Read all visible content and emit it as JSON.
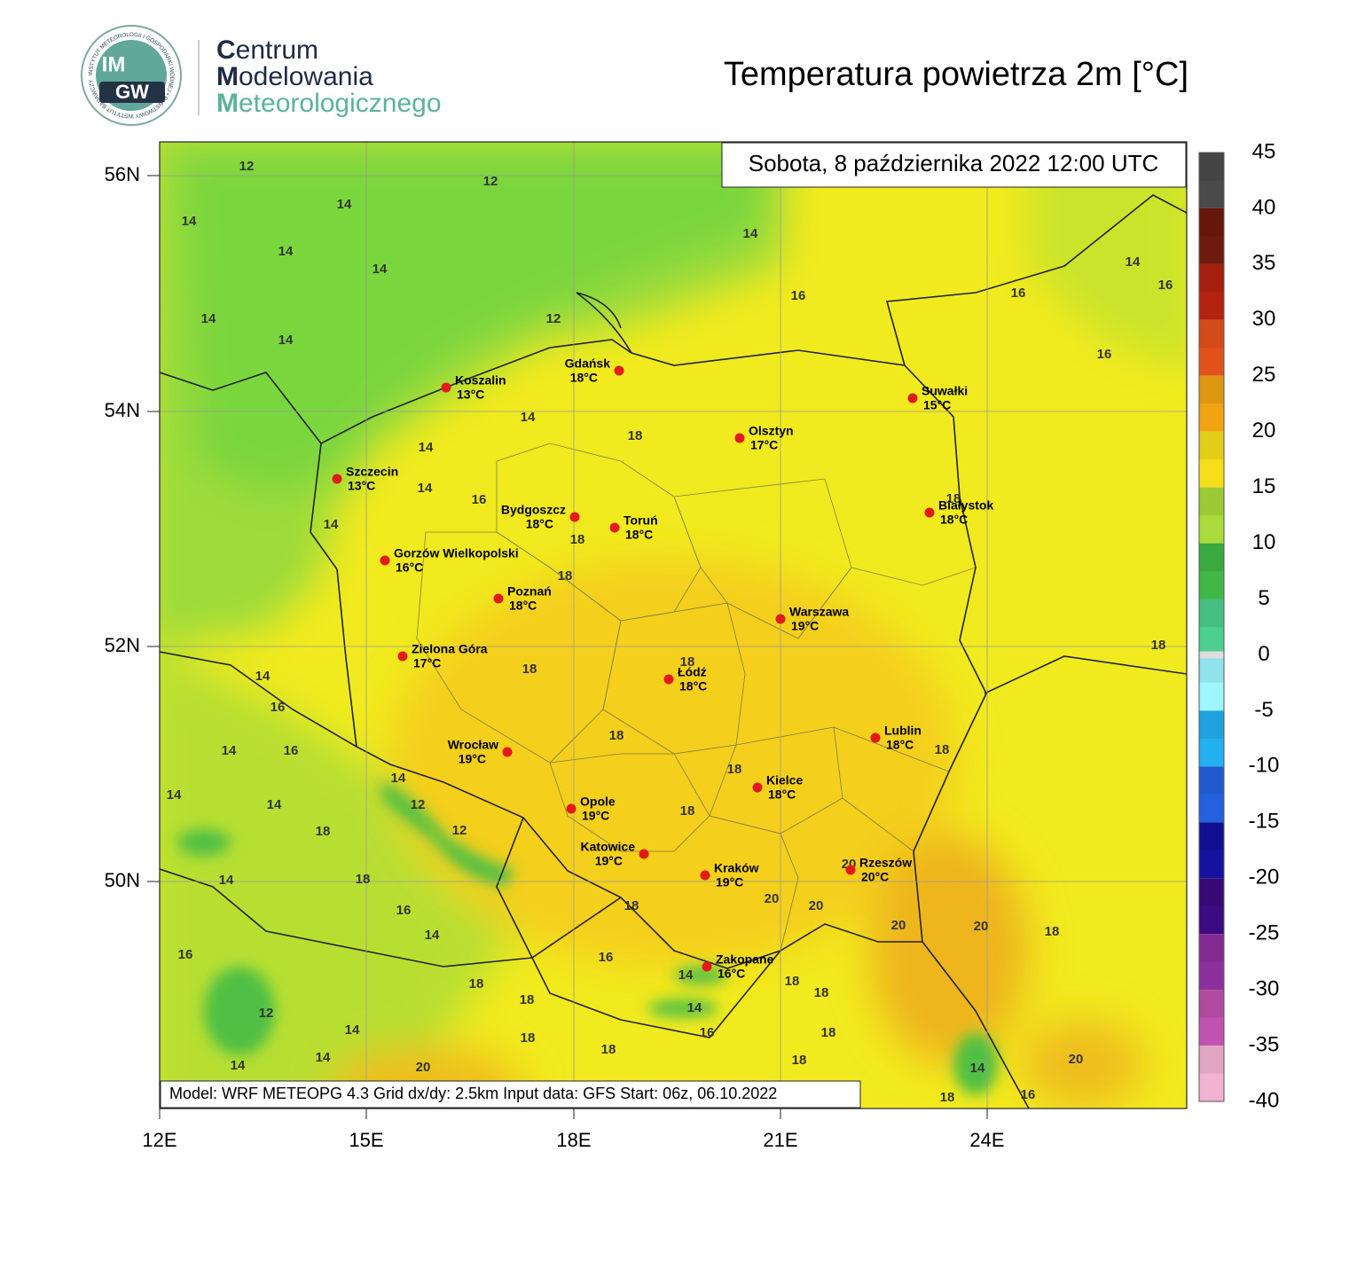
{
  "header": {
    "logo_top": "IM",
    "logo_bottom": "GW",
    "logo_ring": "INSTYTUT METEOROLOGII I GOSPODARKI WODNEJ • PAŃSTWOWY INSTYTUT BADAWCZY",
    "org": [
      "Centrum",
      "Modelowania",
      "Meteorologicznego"
    ],
    "title": "Temperatura powietrza 2m [°C]"
  },
  "map": {
    "date": "Sobota, 8 października 2022 12:00 UTC",
    "footer": "Model: WRF METEOPG 4.3  Grid dx/dy: 2.5km  Input data: GFS  Start: 06z, 06.10.2022",
    "xticks": [
      "12E",
      "15E",
      "18E",
      "21E",
      "24E"
    ],
    "yticks": [
      "56N",
      "54N",
      "52N",
      "50N"
    ],
    "cities": [
      {
        "name": "Gdańsk",
        "temp": "18°C"
      },
      {
        "name": "Koszalin",
        "temp": "13°C"
      },
      {
        "name": "Szczecin",
        "temp": "13°C"
      },
      {
        "name": "Suwałki",
        "temp": "15°C"
      },
      {
        "name": "Olsztyn",
        "temp": "17°C"
      },
      {
        "name": "Bydgoszcz",
        "temp": "18°C"
      },
      {
        "name": "Toruń",
        "temp": "18°C"
      },
      {
        "name": "Białystok",
        "temp": "18°C"
      },
      {
        "name": "Gorzów Wielkopolski",
        "temp": "16°C"
      },
      {
        "name": "Poznań",
        "temp": "18°C"
      },
      {
        "name": "Warszawa",
        "temp": "19°C"
      },
      {
        "name": "Zielona Góra",
        "temp": "17°C"
      },
      {
        "name": "Łódź",
        "temp": "18°C"
      },
      {
        "name": "Lublin",
        "temp": "18°C"
      },
      {
        "name": "Wrocław",
        "temp": "19°C"
      },
      {
        "name": "Kielce",
        "temp": "18°C"
      },
      {
        "name": "Opole",
        "temp": "19°C"
      },
      {
        "name": "Katowice",
        "temp": "19°C"
      },
      {
        "name": "Kraków",
        "temp": "19°C"
      },
      {
        "name": "Rzeszów",
        "temp": "20°C"
      },
      {
        "name": "Zakopane",
        "temp": "16°C"
      }
    ],
    "contour_labels": [
      12,
      12,
      14,
      14,
      14,
      14,
      14,
      16,
      16,
      14,
      16,
      14,
      14,
      12,
      16,
      14,
      18,
      14,
      14,
      16,
      14,
      18,
      18,
      18,
      18,
      18,
      18,
      14,
      16,
      14,
      16,
      18,
      18,
      18,
      14,
      14,
      12,
      14,
      18,
      12,
      18,
      14,
      18,
      20,
      16,
      18,
      20,
      20,
      14,
      20,
      20,
      18,
      16,
      16,
      14,
      18,
      18,
      18,
      18,
      12,
      14,
      14,
      16,
      18,
      18,
      18,
      14,
      18,
      14,
      20,
      20,
      14,
      18,
      16
    ]
  },
  "colorbar": {
    "ticks": [
      45,
      40,
      35,
      30,
      25,
      20,
      15,
      10,
      5,
      0,
      -5,
      -10,
      -15,
      -20,
      -25,
      -30,
      -35,
      -40
    ],
    "colors": [
      "#4a4a4a",
      "#6e1a0e",
      "#b5220f",
      "#e4521b",
      "#f0a412",
      "#f6df1a",
      "#a9dc3a",
      "#3fb845",
      "#4ccf8e",
      "#9ff6ff",
      "#22b0f0",
      "#2462e0",
      "#14129e",
      "#3c0b82",
      "#8e2f9e",
      "#c052b0",
      "#f2b3d2"
    ]
  }
}
